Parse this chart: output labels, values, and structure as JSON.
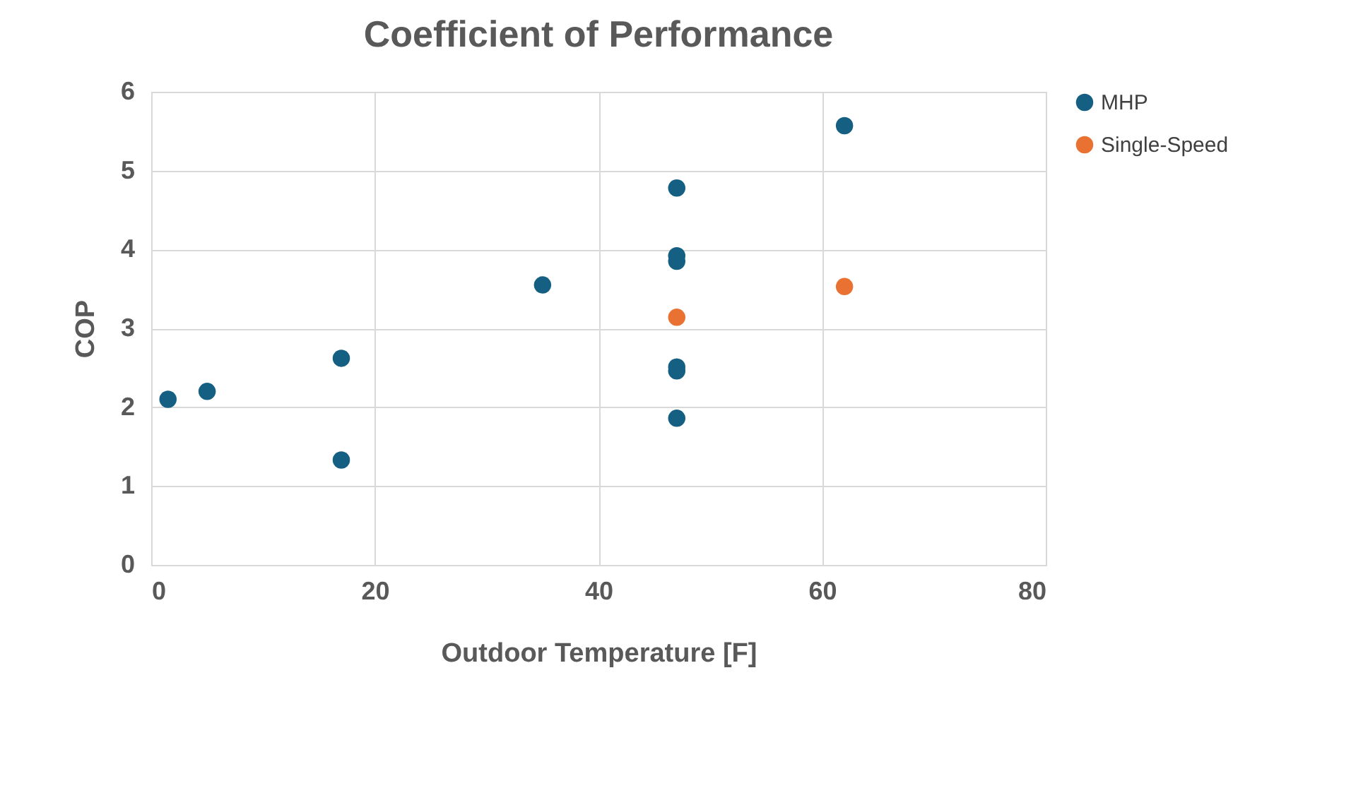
{
  "chart_data": {
    "type": "scatter",
    "title": "Coefficient of Performance",
    "xlabel": "Outdoor Temperature [F]",
    "ylabel": "COP",
    "xlim": [
      0,
      80
    ],
    "xticks": [
      0,
      20,
      40,
      60,
      80
    ],
    "ylim": [
      0,
      6
    ],
    "yticks": [
      0,
      1,
      2,
      3,
      4,
      5,
      6
    ],
    "grid": true,
    "legend": "right",
    "marker": "circle",
    "series": [
      {
        "name": "MHP",
        "color": "#156082",
        "x": [
          1.5,
          5,
          17,
          17,
          35,
          47,
          47,
          47,
          47,
          47,
          47,
          62
        ],
        "values": [
          2.1,
          2.2,
          2.62,
          1.33,
          3.55,
          4.78,
          3.92,
          3.85,
          2.51,
          2.46,
          1.86,
          5.57
        ]
      },
      {
        "name": "Single-Speed",
        "color": "#e97132",
        "x": [
          47,
          62
        ],
        "values": [
          3.14,
          3.53
        ]
      }
    ]
  }
}
